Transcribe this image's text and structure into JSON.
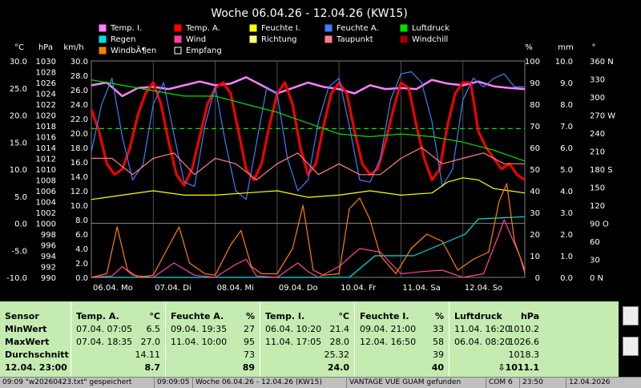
{
  "chart_data": {
    "type": "line",
    "title": "Woche 06.04.26 - 12.04.26 (KW15)",
    "x_labels": [
      "06.04. Mo",
      "07.04. Di",
      "08.04. Mi",
      "09.04. Do",
      "10.04. Fr",
      "11.04. Sa",
      "12.04. So"
    ],
    "x_range_hours": [
      0,
      168
    ],
    "axes": {
      "temperature": {
        "unit": "°C",
        "ticks": [
          30.0,
          25.0,
          20.0,
          15.0,
          10.0,
          5.0,
          0.0,
          -5.0,
          -10.0
        ]
      },
      "pressure": {
        "unit": "hPa",
        "ticks": [
          1030,
          1028,
          1026,
          1024,
          1022,
          1020,
          1018,
          1016,
          1014,
          1012,
          1010,
          1008,
          1006,
          1004,
          1002,
          1000,
          998,
          996,
          994,
          992,
          990
        ]
      },
      "wind": {
        "unit": "km/h",
        "ticks": [
          "30.0",
          "28.0",
          "26.0",
          "24.0",
          "22.0",
          "20.0",
          "18.0",
          "16.0",
          "14.0",
          "12.0",
          "10.0",
          "8.0",
          "6.0",
          "4.0",
          "2.0",
          "0.0"
        ]
      },
      "humidity": {
        "unit": "%",
        "ticks": [
          100,
          90,
          80,
          70,
          60,
          50,
          40,
          30,
          20,
          10,
          0
        ]
      },
      "rain": {
        "unit": "mm",
        "ticks": [
          "10.0",
          "9.0",
          "8.0",
          "7.0",
          "6.0",
          "5.0",
          "4.0",
          "3.0",
          "2.0",
          "1.0",
          "0.0"
        ]
      },
      "direction": {
        "unit": "°",
        "ticks": [
          "360 N",
          "330",
          "300",
          "270 W",
          "240",
          "210",
          "180 S",
          "150",
          "120",
          "90 O",
          "60",
          "30",
          "0   N"
        ]
      }
    },
    "legend": [
      {
        "label": "Temp. I.",
        "color": "#ff80ff"
      },
      {
        "label": "Temp. A.",
        "color": "#ff0000"
      },
      {
        "label": "Feuchte I.",
        "color": "#ffff00"
      },
      {
        "label": "Feuchte A.",
        "color": "#3f7fff"
      },
      {
        "label": "Luftdruck",
        "color": "#00e000"
      },
      {
        "label": "Regen",
        "color": "#00e0e0"
      },
      {
        "label": "Wind",
        "color": "#ff40a0"
      },
      {
        "label": "Richtung",
        "color": "#ffff80"
      },
      {
        "label": "Taupunkt",
        "color": "#ff8080"
      },
      {
        "label": "Windchill",
        "color": "#a00000"
      },
      {
        "label": "WindbÃ¶en",
        "color": "#ff8000"
      },
      {
        "label": "Empfang",
        "color": "#ffffff"
      }
    ],
    "series": [
      {
        "name": "Temp. I.",
        "unit": "°C",
        "x": [
          0,
          6,
          12,
          18,
          24,
          30,
          36,
          42,
          48,
          54,
          60,
          66,
          72,
          78,
          84,
          90,
          96,
          102,
          108,
          114,
          120,
          126,
          132,
          138,
          144,
          150,
          156,
          162,
          168
        ],
        "y": [
          25.5,
          26.0,
          23.5,
          25.0,
          25.2,
          24.8,
          25.5,
          26.2,
          25.5,
          25.8,
          27.0,
          25.5,
          24.0,
          25.0,
          26.0,
          25.2,
          24.8,
          24.0,
          25.5,
          24.8,
          25.0,
          24.8,
          26.5,
          25.8,
          25.5,
          26.2,
          25.3,
          25.0,
          24.8
        ]
      },
      {
        "name": "Temp. A.",
        "unit": "°C",
        "x": [
          0,
          3,
          6,
          9,
          12,
          15,
          18,
          21,
          24,
          27,
          30,
          33,
          36,
          39,
          42,
          45,
          48,
          51,
          54,
          57,
          60,
          63,
          66,
          69,
          72,
          75,
          78,
          81,
          84,
          87,
          90,
          93,
          96,
          99,
          102,
          105,
          108,
          111,
          114,
          117,
          120,
          123,
          126,
          129,
          132,
          135,
          138,
          141,
          144,
          147,
          150,
          153,
          156,
          159,
          162,
          165,
          168
        ],
        "y": [
          21,
          17,
          11,
          9,
          10,
          14,
          20,
          24,
          26,
          22,
          15,
          9,
          7,
          10,
          16,
          22,
          25,
          26,
          24,
          17,
          10,
          8,
          11,
          18,
          24,
          26,
          22,
          14,
          9,
          11,
          18,
          24,
          26,
          24,
          17,
          11,
          9,
          10,
          15,
          21,
          26,
          25,
          18,
          12,
          8,
          10,
          18,
          24,
          26,
          26,
          17,
          14,
          12,
          10,
          11,
          9,
          8
        ]
      },
      {
        "name": "Feuchte A.",
        "unit": "%",
        "x": [
          0,
          4,
          8,
          12,
          16,
          20,
          24,
          28,
          32,
          36,
          40,
          44,
          48,
          52,
          56,
          60,
          64,
          68,
          72,
          76,
          80,
          84,
          88,
          92,
          96,
          100,
          104,
          108,
          112,
          116,
          120,
          124,
          128,
          132,
          136,
          140,
          144,
          148,
          152,
          156,
          160,
          164,
          168
        ],
        "y": [
          58,
          80,
          92,
          65,
          45,
          52,
          80,
          90,
          66,
          44,
          42,
          70,
          88,
          62,
          40,
          36,
          62,
          88,
          85,
          55,
          40,
          45,
          72,
          88,
          92,
          70,
          45,
          44,
          55,
          82,
          94,
          95,
          90,
          72,
          42,
          50,
          82,
          92,
          88,
          92,
          94,
          88,
          88
        ]
      },
      {
        "name": "Feuchte I.",
        "unit": "%",
        "x": [
          0,
          12,
          24,
          36,
          48,
          60,
          72,
          84,
          96,
          108,
          120,
          132,
          138,
          144,
          150,
          156,
          168
        ],
        "y": [
          36,
          38,
          40,
          38,
          38,
          39,
          40,
          37,
          38,
          40,
          38,
          39,
          44,
          46,
          45,
          41,
          39
        ]
      },
      {
        "name": "Luftdruck",
        "unit": "hPa",
        "x": [
          0,
          12,
          24,
          36,
          48,
          60,
          72,
          84,
          96,
          108,
          120,
          132,
          144,
          156,
          168
        ],
        "y": [
          1026.5,
          1025.5,
          1024.5,
          1023.5,
          1023.5,
          1022.0,
          1020.5,
          1018.5,
          1016.5,
          1016.0,
          1016.5,
          1016.0,
          1015.0,
          1013.5,
          1011.5
        ]
      },
      {
        "name": "Taupunkt",
        "unit": "°C",
        "x": [
          0,
          8,
          16,
          24,
          32,
          40,
          48,
          56,
          64,
          72,
          80,
          88,
          96,
          104,
          112,
          120,
          128,
          136,
          144,
          152,
          160,
          168
        ],
        "y": [
          12,
          12,
          9,
          12,
          13,
          9,
          12,
          11,
          8,
          11,
          13,
          9,
          11,
          9,
          9,
          12,
          14,
          11,
          12,
          13,
          11,
          11
        ]
      },
      {
        "name": "Regen",
        "unit": "mm",
        "x": [
          0,
          100,
          110,
          125,
          145,
          150,
          168
        ],
        "y": [
          0.0,
          0.0,
          1.0,
          1.0,
          2.0,
          2.7,
          2.8
        ]
      },
      {
        "name": "Wind",
        "unit": "km/h",
        "x": [
          0,
          8,
          12,
          16,
          24,
          32,
          40,
          48,
          56,
          60,
          64,
          72,
          80,
          84,
          88,
          96,
          104,
          112,
          120,
          128,
          136,
          144,
          152,
          158,
          160,
          166,
          168
        ],
        "y": [
          0.0,
          0.2,
          1.5,
          0.3,
          0.0,
          2.0,
          0.3,
          0.0,
          1.8,
          2.5,
          0.2,
          0.0,
          2.0,
          0.8,
          0.0,
          1.5,
          4.0,
          3.5,
          0.5,
          0.8,
          1.0,
          0.0,
          0.5,
          6.0,
          8.0,
          3.0,
          0.5
        ]
      },
      {
        "name": "WindbÃ¶en",
        "unit": "km/h",
        "x": [
          0,
          6,
          10,
          14,
          18,
          24,
          28,
          34,
          38,
          44,
          48,
          54,
          58,
          62,
          66,
          72,
          78,
          82,
          86,
          90,
          96,
          100,
          104,
          108,
          112,
          118,
          124,
          130,
          136,
          142,
          148,
          154,
          158,
          161,
          164,
          168
        ],
        "y": [
          0.0,
          0.5,
          7.0,
          1.0,
          0.0,
          0.3,
          3.0,
          7.0,
          2.0,
          0.5,
          0.3,
          4.5,
          6.5,
          1.5,
          0.5,
          0.5,
          4.0,
          10.0,
          1.0,
          0.3,
          0.5,
          9.5,
          11.0,
          8.0,
          3.0,
          0.5,
          4.0,
          6.0,
          5.0,
          1.0,
          2.5,
          3.5,
          10.5,
          13.0,
          5.0,
          1.0
        ]
      }
    ]
  },
  "stats": {
    "columns": [
      {
        "header": "Sensor",
        "unit": "",
        "min_label": "MinWert",
        "max_label": "MaxWert",
        "avg_label": "Durchschnitt",
        "current_label": "12.04. 23:00"
      },
      {
        "header": "Temp. A.",
        "unit": "°C",
        "min_time": "07.04.  07:05",
        "min_value": "6.5",
        "max_time": "07.04.  18:35",
        "max_value": "27.0",
        "avg_value": "14.11",
        "current_value": "8.7"
      },
      {
        "header": "Feuchte A.",
        "unit": "%",
        "min_time": "09.04.  19:35",
        "min_value": "27",
        "max_time": "11.04.  10:00",
        "max_value": "95",
        "avg_value": "73",
        "current_value": "89"
      },
      {
        "header": "Temp. I.",
        "unit": "°C",
        "min_time": "06.04.  10:20",
        "min_value": "21.4",
        "max_time": "11.04.  17:05",
        "max_value": "28.0",
        "avg_value": "25.32",
        "current_value": "24.0"
      },
      {
        "header": "Feuchte I.",
        "unit": "%",
        "min_time": "09.04.  21:00",
        "min_value": "33",
        "max_time": "12.04.  16:50",
        "max_value": "58",
        "avg_value": "39",
        "current_value": "40"
      },
      {
        "header": "Luftdruck",
        "unit": "hPa",
        "min_time": "11.04.  16:20",
        "min_value": "1010.2",
        "max_time": "06.04.  08:20",
        "max_value": "1026.6",
        "avg_value": "1018.3",
        "current_value": "⇩1011.1"
      }
    ]
  },
  "statusbar": {
    "file": "09:09 \"w20260423.txt\" gespeichert",
    "time": "09:09:05",
    "window": "Woche 06.04.26 - 12.04.26 (KW15)",
    "station": "VANTAGE VUE GUAM gefunden",
    "port": "COM 6",
    "clock": "23:50",
    "date": "12.04.2026"
  }
}
